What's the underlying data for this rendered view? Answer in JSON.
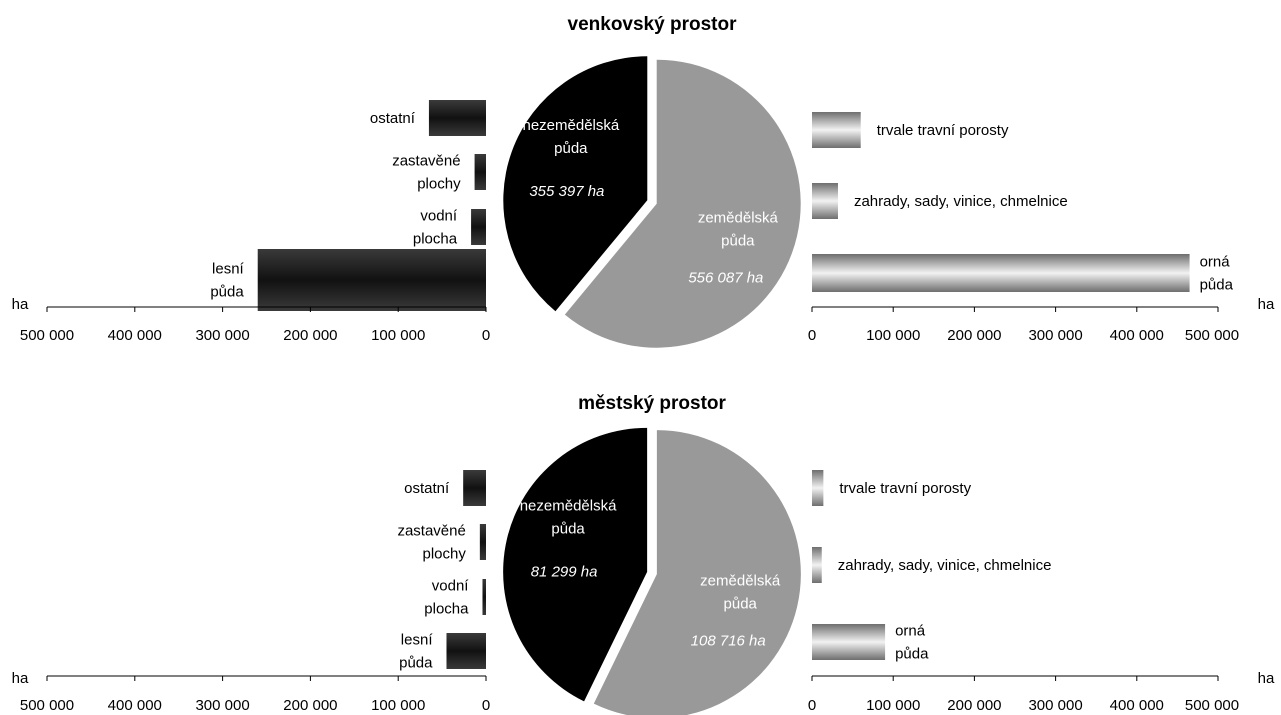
{
  "colors": {
    "nonagri_slice": "#000000",
    "agri_slice": "#999999",
    "left_bar_dark": "#111111",
    "left_bar_light": "#3a3a3a",
    "right_bar_dark": "#6e6e6e",
    "right_bar_light": "#f2f2f2"
  },
  "chart_data": [
    {
      "type": "pie",
      "title": "venkovský prostor",
      "slices": [
        {
          "label": [
            "nezemědělská",
            "půda"
          ],
          "value": 355397,
          "value_label": "355 397 ha"
        },
        {
          "label": [
            "zemědělská",
            "půda"
          ],
          "value": 556087,
          "value_label": "556 087 ha"
        }
      ],
      "left_bars": {
        "type": "bar",
        "unit": "ha",
        "tick_labels": [
          "500 000",
          "400 000",
          "300 000",
          "200 000",
          "100 000",
          "0"
        ],
        "xlim": [
          0,
          500000
        ],
        "items": [
          {
            "label": [
              "ostatní"
            ],
            "value": 65000
          },
          {
            "label": [
              "zastavěné",
              "plochy"
            ],
            "value": 13000
          },
          {
            "label": [
              "vodní",
              "plocha"
            ],
            "value": 17000
          },
          {
            "label": [
              "lesní",
              "půda"
            ],
            "value": 260000
          }
        ]
      },
      "right_bars": {
        "type": "bar",
        "unit": "ha",
        "tick_labels": [
          "0",
          "100 000",
          "200 000",
          "300 000",
          "400 000",
          "500 000"
        ],
        "xlim": [
          0,
          500000
        ],
        "items": [
          {
            "label": [
              "trvale travní porosty"
            ],
            "value": 60000
          },
          {
            "label": [
              "zahrady, sady, vinice, chmelnice"
            ],
            "value": 32000
          },
          {
            "label": [
              "orná",
              "půda"
            ],
            "value": 465000
          }
        ]
      }
    },
    {
      "type": "pie",
      "title": "městský prostor",
      "slices": [
        {
          "label": [
            "nezemědělská",
            "půda"
          ],
          "value": 81299,
          "value_label": "81 299 ha"
        },
        {
          "label": [
            "zemědělská",
            "půda"
          ],
          "value": 108716,
          "value_label": "108 716 ha"
        }
      ],
      "left_bars": {
        "type": "bar",
        "unit": "ha",
        "tick_labels": [
          "500 000",
          "400 000",
          "300 000",
          "200 000",
          "100 000",
          "0"
        ],
        "xlim": [
          0,
          500000
        ],
        "items": [
          {
            "label": [
              "ostatní"
            ],
            "value": 26000
          },
          {
            "label": [
              "zastavěné",
              "plochy"
            ],
            "value": 7000
          },
          {
            "label": [
              "vodní",
              "plocha"
            ],
            "value": 4000
          },
          {
            "label": [
              "lesní",
              "půda"
            ],
            "value": 45000
          }
        ]
      },
      "right_bars": {
        "type": "bar",
        "unit": "ha",
        "tick_labels": [
          "0",
          "100 000",
          "200 000",
          "300 000",
          "400 000",
          "500 000"
        ],
        "xlim": [
          0,
          500000
        ],
        "items": [
          {
            "label": [
              "trvale travní porosty"
            ],
            "value": 14000
          },
          {
            "label": [
              "zahrady, sady, vinice, chmelnice"
            ],
            "value": 12000
          },
          {
            "label": [
              "orná",
              "půda"
            ],
            "value": 90000
          }
        ]
      }
    }
  ]
}
